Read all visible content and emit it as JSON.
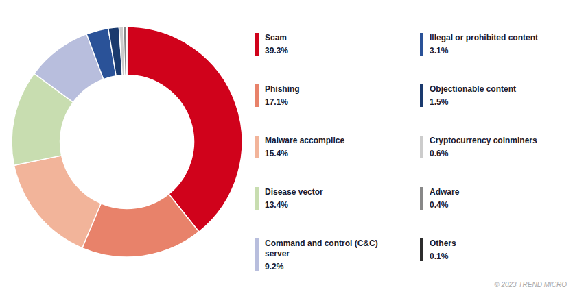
{
  "chart_data": {
    "type": "pie",
    "categories": [
      "Scam",
      "Phishing",
      "Malware accomplice",
      "Disease vector",
      "Command and control (C&C) server",
      "Illegal or prohibited content",
      "Objectionable content",
      "Cryptocurrency coinminers",
      "Adware",
      "Others"
    ],
    "values": [
      39.3,
      17.1,
      15.4,
      13.4,
      9.2,
      3.1,
      1.5,
      0.6,
      0.4,
      0.1
    ],
    "value_labels": [
      "39.3%",
      "17.1%",
      "15.4%",
      "13.4%",
      "9.2%",
      "3.1%",
      "1.5%",
      "0.6%",
      "0.4%",
      "0.1%"
    ],
    "colors": [
      "#d0021b",
      "#e8826a",
      "#f2b49a",
      "#c8ddb0",
      "#b8bedd",
      "#2a5298",
      "#1a3a6e",
      "#cccccc",
      "#888888",
      "#2d2d2d"
    ],
    "legend": "right",
    "annotations": [
      "© 2023 TREND MICRO"
    ]
  }
}
